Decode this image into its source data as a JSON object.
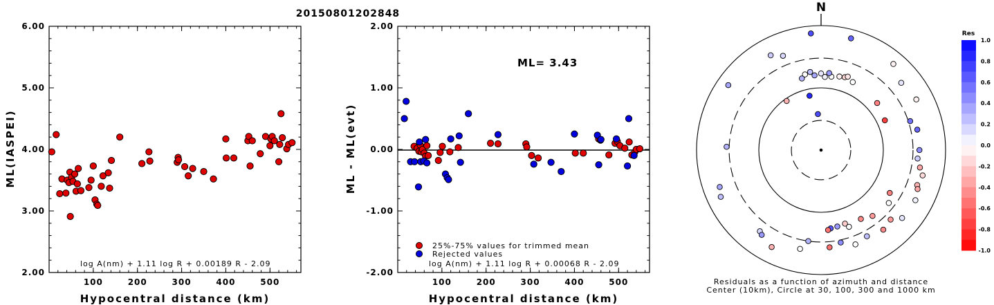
{
  "title": "20150801202848",
  "colors": {
    "red": "#e00000",
    "blue": "#0000e0",
    "edge": "#000000"
  },
  "chart_data": [
    {
      "type": "scatter",
      "xlabel": "Hypocentral distance (km)",
      "ylabel": "ML(IASPEI)",
      "xlim": [
        0,
        570
      ],
      "ylim": [
        2.0,
        6.0
      ],
      "xticks": [
        "100",
        "200",
        "300",
        "400",
        "500"
      ],
      "yticks": [
        "2.00",
        "3.00",
        "4.00",
        "5.00",
        "6.00"
      ],
      "formula": "log A(nm) + 1.11 log R + 0.00189 R - 2.09",
      "series": [
        {
          "color": "red",
          "points": [
            [
              6,
              3.96
            ],
            [
              16,
              4.24
            ],
            [
              24,
              3.28
            ],
            [
              29,
              3.52
            ],
            [
              38,
              3.29
            ],
            [
              41,
              3.5
            ],
            [
              45,
              3.46
            ],
            [
              47,
              3.63
            ],
            [
              48,
              2.91
            ],
            [
              51,
              3.55
            ],
            [
              54,
              3.48
            ],
            [
              58,
              3.6
            ],
            [
              61,
              3.32
            ],
            [
              64,
              3.44
            ],
            [
              66,
              3.69
            ],
            [
              72,
              3.33
            ],
            [
              90,
              3.38
            ],
            [
              95,
              3.5
            ],
            [
              100,
              3.73
            ],
            [
              104,
              3.18
            ],
            [
              108,
              3.11
            ],
            [
              110,
              3.09
            ],
            [
              118,
              3.4
            ],
            [
              122,
              3.57
            ],
            [
              134,
              3.62
            ],
            [
              137,
              3.37
            ],
            [
              141,
              3.82
            ],
            [
              160,
              4.2
            ],
            [
              210,
              3.77
            ],
            [
              226,
              3.96
            ],
            [
              228,
              3.81
            ],
            [
              290,
              3.79
            ],
            [
              292,
              3.87
            ],
            [
              293,
              3.83
            ],
            [
              307,
              3.72
            ],
            [
              315,
              3.57
            ],
            [
              325,
              3.69
            ],
            [
              350,
              3.64
            ],
            [
              372,
              3.52
            ],
            [
              400,
              4.17
            ],
            [
              401,
              3.86
            ],
            [
              418,
              3.86
            ],
            [
              450,
              4.14
            ],
            [
              452,
              4.21
            ],
            [
              455,
              3.73
            ],
            [
              460,
              4.14
            ],
            [
              478,
              3.93
            ],
            [
              490,
              4.21
            ],
            [
              500,
              4.06
            ],
            [
              502,
              4.17
            ],
            [
              505,
              4.21
            ],
            [
              510,
              4.14
            ],
            [
              520,
              3.8
            ],
            [
              522,
              4.08
            ],
            [
              525,
              4.58
            ],
            [
              528,
              4.19
            ],
            [
              538,
              4.01
            ],
            [
              542,
              4.08
            ],
            [
              550,
              4.11
            ]
          ]
        }
      ]
    },
    {
      "type": "scatter",
      "xlabel": "Hypocentral distance (km)",
      "ylabel": "ML - ML(evt)",
      "xlim": [
        0,
        570
      ],
      "ylim": [
        -2.0,
        2.0
      ],
      "xticks": [
        "100",
        "200",
        "300",
        "400",
        "500"
      ],
      "yticks": [
        "-2.00",
        "-1.00",
        "0.00",
        "1.00",
        "2.00"
      ],
      "annotation": "ML= 3.43",
      "formula": "log A(nm) + 1.11 log R + 0.00068 R - 2.09",
      "legend": [
        {
          "color": "red",
          "label": "25%-75% values for trimmed mean"
        },
        {
          "color": "blue",
          "label": "Rejected values"
        }
      ],
      "series": [
        {
          "color": "red",
          "points": [
            [
              37,
              0.05
            ],
            [
              44,
              0.02
            ],
            [
              48,
              -0.03
            ],
            [
              51,
              0.07
            ],
            [
              53,
              -0.04
            ],
            [
              56,
              0.0
            ],
            [
              60,
              -0.06
            ],
            [
              63,
              -0.11
            ],
            [
              66,
              0.06
            ],
            [
              69,
              -0.1
            ],
            [
              92,
              -0.18
            ],
            [
              96,
              -0.05
            ],
            [
              101,
              0.05
            ],
            [
              118,
              -0.04
            ],
            [
              137,
              0.03
            ],
            [
              210,
              0.1
            ],
            [
              227,
              0.09
            ],
            [
              290,
              0.09
            ],
            [
              292,
              0.04
            ],
            [
              303,
              -0.1
            ],
            [
              318,
              -0.14
            ],
            [
              402,
              -0.06
            ],
            [
              420,
              -0.06
            ],
            [
              455,
              0.17
            ],
            [
              459,
              0.15
            ],
            [
              478,
              -0.09
            ],
            [
              492,
              0.1
            ],
            [
              497,
              0.13
            ],
            [
              503,
              0.06
            ],
            [
              514,
              0.02
            ],
            [
              524,
              0.12
            ],
            [
              530,
              -0.09
            ],
            [
              537,
              -0.04
            ],
            [
              540,
              0.0
            ],
            [
              548,
              0.01
            ]
          ]
        },
        {
          "color": "blue",
          "points": [
            [
              15,
              0.5
            ],
            [
              19,
              0.78
            ],
            [
              29,
              -0.2
            ],
            [
              38,
              -0.2
            ],
            [
              47,
              -0.61
            ],
            [
              49,
              0.12
            ],
            [
              52,
              -0.2
            ],
            [
              59,
              -0.19
            ],
            [
              63,
              0.16
            ],
            [
              66,
              -0.22
            ],
            [
              108,
              -0.4
            ],
            [
              112,
              -0.46
            ],
            [
              115,
              -0.49
            ],
            [
              120,
              0.17
            ],
            [
              139,
              0.22
            ],
            [
              142,
              -0.21
            ],
            [
              160,
              0.58
            ],
            [
              227,
              0.24
            ],
            [
              308,
              -0.24
            ],
            [
              347,
              -0.21
            ],
            [
              370,
              -0.36
            ],
            [
              400,
              0.25
            ],
            [
              452,
              0.23
            ],
            [
              455,
              -0.25
            ],
            [
              460,
              0.16
            ],
            [
              495,
              0.17
            ],
            [
              520,
              -0.27
            ],
            [
              523,
              0.5
            ],
            [
              535,
              -0.1
            ]
          ]
        }
      ]
    },
    {
      "type": "scatter",
      "subtype": "polar-residual-map",
      "north_label": "N",
      "caption_line1": "Residuals as a function of azimuth and distance",
      "caption_line2": "Center (10km), Circle at 30, 100, 300 and 1000 km",
      "colorbar_title": "Res",
      "colorbar_ticks": [
        "1.0",
        "0.8",
        "0.6",
        "0.4",
        "0.2",
        "0.0",
        "-0.2",
        "-0.4",
        "-0.6",
        "-0.8",
        "-1.0"
      ],
      "rings_km": [
        10,
        30,
        100,
        300,
        1000
      ],
      "ring_styles": [
        "center-dot",
        "dashed",
        "solid",
        "dashed",
        "solid"
      ],
      "stations_az_dist_res": [
        [
          355,
          760,
          0.7
        ],
        [
          15,
          720,
          0.6
        ],
        [
          -28,
          530,
          0.2
        ],
        [
          -22,
          430,
          0.15
        ],
        [
          40,
          640,
          -0.05
        ],
        [
          -55,
          660,
          0.35
        ],
        [
          50,
          480,
          0.1
        ],
        [
          62,
          540,
          -0.05
        ],
        [
          -8,
          185,
          0.25
        ],
        [
          -5,
          160,
          0.35
        ],
        [
          0,
          170,
          0.1
        ],
        [
          3,
          150,
          0.05
        ],
        [
          8,
          155,
          0.0
        ],
        [
          14,
          165,
          -0.05
        ],
        [
          18,
          170,
          -0.15
        ],
        [
          -12,
          175,
          0.0
        ],
        [
          -15,
          155,
          0.3
        ],
        [
          6,
          175,
          0.4
        ],
        [
          20,
          180,
          -0.1
        ],
        [
          25,
          160,
          0.0
        ],
        [
          -35,
          92,
          -0.3
        ],
        [
          -5,
          38,
          0.7
        ],
        [
          -12,
          78,
          0.85
        ],
        [
          65,
          135,
          -0.75
        ],
        [
          50,
          150,
          -0.5
        ],
        [
          72,
          320,
          0.55
        ],
        [
          78,
          380,
          0.6
        ],
        [
          90,
          380,
          0.45
        ],
        [
          95,
          360,
          0.2
        ],
        [
          100,
          410,
          -0.35
        ],
        [
          110,
          440,
          -0.3
        ],
        [
          112,
          470,
          -0.35
        ],
        [
          104,
          480,
          -0.15
        ],
        [
          -88,
          330,
          0.3
        ],
        [
          -110,
          540,
          0.35
        ],
        [
          -115,
          600,
          0.25
        ],
        [
          -143,
          430,
          0.15
        ],
        [
          -145,
          460,
          0.4
        ],
        [
          -153,
          560,
          -0.3
        ],
        [
          122,
          200,
          -0.5
        ],
        [
          128,
          240,
          0.0
        ],
        [
          142,
          220,
          -0.4
        ],
        [
          150,
          190,
          -0.45
        ],
        [
          162,
          175,
          -0.2
        ],
        [
          168,
          180,
          0.4
        ],
        [
          173,
          185,
          0.65
        ],
        [
          175,
          195,
          -0.55
        ],
        [
          160,
          205,
          0.0
        ],
        [
          152,
          370,
          0.25
        ],
        [
          168,
          330,
          0.45
        ],
        [
          175,
          370,
          -0.55
        ],
        [
          160,
          410,
          0.0
        ],
        [
          135,
          380,
          -0.4
        ],
        [
          142,
          420,
          -0.45
        ],
        [
          -172,
          300,
          0.3
        ],
        [
          130,
          500,
          0.1
        ],
        [
          118,
          520,
          0.05
        ],
        [
          -168,
          420,
          0.0
        ]
      ]
    }
  ]
}
